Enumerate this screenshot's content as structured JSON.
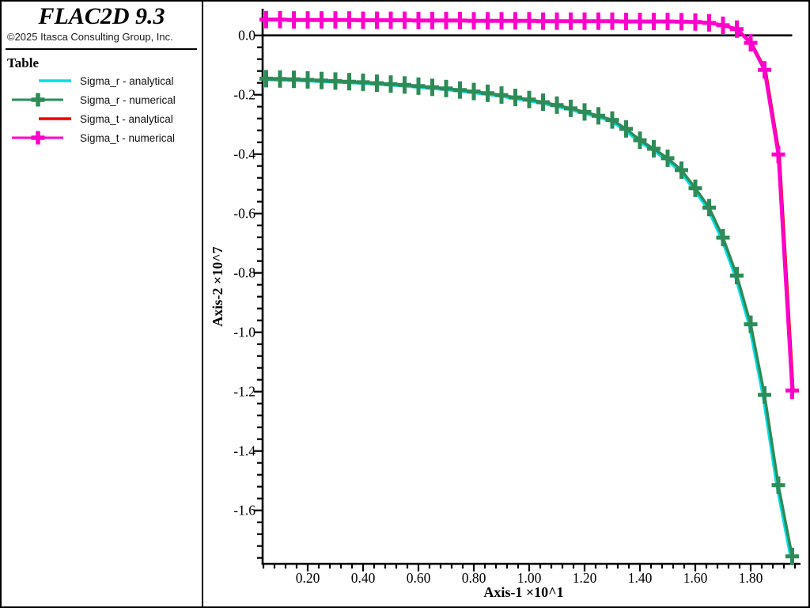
{
  "header": {
    "app_title": "FLAC2D 9.3",
    "copyright": "©2025 Itasca Consulting Group, Inc."
  },
  "legend": {
    "title": "Table",
    "items": [
      {
        "label": "Sigma_r - analytical",
        "color": "#00e0e8",
        "marker": false
      },
      {
        "label": "Sigma_r - numerical",
        "color": "#2e8b57",
        "marker": true
      },
      {
        "label": "Sigma_t - analytical",
        "color": "#ee0000",
        "marker": false
      },
      {
        "label": "Sigma_t - numerical",
        "color": "#ff00cc",
        "marker": true
      }
    ]
  },
  "chart_data": {
    "type": "line",
    "xlabel": "Axis-1 ×10^1",
    "ylabel": "Axis-2 ×10^7",
    "xlim": [
      0.05,
      1.98
    ],
    "ylim": [
      -1.78,
      0.085
    ],
    "grid": false,
    "zero_line": true,
    "x_ticks": {
      "values": [
        0.2,
        0.4,
        0.6,
        0.8,
        1.0,
        1.2,
        1.4,
        1.6,
        1.8
      ],
      "labels": [
        "0.20",
        "0.40",
        "0.60",
        "0.80",
        "1.00",
        "1.20",
        "1.40",
        "1.60",
        "1.80"
      ],
      "minor_step": 0.04
    },
    "y_ticks": {
      "values": [
        0.0,
        -0.2,
        -0.4,
        -0.6,
        -0.8,
        -1.0,
        -1.2,
        -1.4,
        -1.6
      ],
      "labels": [
        "0.0",
        "-0.2",
        "-0.4",
        "-0.6",
        "-0.8",
        "-1.0",
        "-1.2",
        "-1.4",
        "-1.6"
      ],
      "minor_step": 0.04
    },
    "x": [
      0.05,
      0.1,
      0.15,
      0.2,
      0.25,
      0.3,
      0.35,
      0.4,
      0.45,
      0.5,
      0.55,
      0.6,
      0.65,
      0.7,
      0.75,
      0.8,
      0.85,
      0.9,
      0.95,
      1.0,
      1.05,
      1.1,
      1.15,
      1.2,
      1.25,
      1.3,
      1.35,
      1.4,
      1.45,
      1.5,
      1.55,
      1.6,
      1.65,
      1.7,
      1.75,
      1.8,
      1.85,
      1.9,
      1.95
    ],
    "series": [
      {
        "name": "Sigma_r - analytical",
        "color": "#00e0e8",
        "marker": false,
        "values": [
          -0.146,
          -0.147,
          -0.148,
          -0.15,
          -0.152,
          -0.154,
          -0.156,
          -0.158,
          -0.161,
          -0.164,
          -0.167,
          -0.171,
          -0.175,
          -0.179,
          -0.184,
          -0.189,
          -0.195,
          -0.201,
          -0.209,
          -0.216,
          -0.225,
          -0.235,
          -0.246,
          -0.258,
          -0.271,
          -0.285,
          -0.315,
          -0.353,
          -0.382,
          -0.414,
          -0.454,
          -0.515,
          -0.58,
          -0.681,
          -0.809,
          -0.973,
          -1.211,
          -1.515,
          -1.755
        ]
      },
      {
        "name": "Sigma_r - numerical",
        "color": "#2e8b57",
        "marker": true,
        "values": [
          -0.146,
          -0.147,
          -0.148,
          -0.15,
          -0.152,
          -0.154,
          -0.156,
          -0.158,
          -0.161,
          -0.164,
          -0.167,
          -0.171,
          -0.175,
          -0.179,
          -0.184,
          -0.189,
          -0.195,
          -0.201,
          -0.209,
          -0.216,
          -0.225,
          -0.235,
          -0.246,
          -0.258,
          -0.271,
          -0.285,
          -0.315,
          -0.353,
          -0.382,
          -0.414,
          -0.454,
          -0.515,
          -0.58,
          -0.681,
          -0.809,
          -0.973,
          -1.211,
          -1.515,
          -1.755
        ]
      },
      {
        "name": "Sigma_t - analytical",
        "color": "#ee0000",
        "marker": false,
        "values": [
          0.053,
          0.053,
          0.052,
          0.052,
          0.052,
          0.052,
          0.052,
          0.051,
          0.051,
          0.051,
          0.051,
          0.05,
          0.05,
          0.05,
          0.05,
          0.049,
          0.049,
          0.049,
          0.049,
          0.049,
          0.048,
          0.048,
          0.048,
          0.048,
          0.048,
          0.048,
          0.047,
          0.047,
          0.047,
          0.047,
          0.046,
          0.045,
          0.042,
          0.034,
          0.021,
          -0.025,
          -0.116,
          -0.401,
          -1.196
        ]
      },
      {
        "name": "Sigma_t - numerical",
        "color": "#ff00cc",
        "marker": true,
        "values": [
          0.053,
          0.053,
          0.052,
          0.052,
          0.052,
          0.052,
          0.052,
          0.051,
          0.051,
          0.051,
          0.051,
          0.05,
          0.05,
          0.05,
          0.05,
          0.049,
          0.049,
          0.049,
          0.049,
          0.049,
          0.048,
          0.048,
          0.048,
          0.048,
          0.048,
          0.048,
          0.047,
          0.047,
          0.047,
          0.047,
          0.046,
          0.045,
          0.042,
          0.034,
          0.021,
          -0.025,
          -0.116,
          -0.401,
          -1.196
        ]
      }
    ]
  }
}
